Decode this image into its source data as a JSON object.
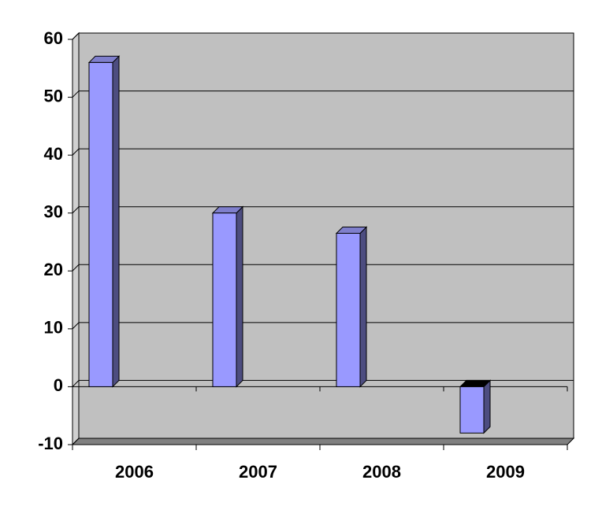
{
  "chart_data": {
    "type": "bar3d",
    "categories": [
      "2006",
      "2007",
      "2008",
      "2009"
    ],
    "values": [
      56,
      30,
      26.5,
      -8
    ],
    "color": "#9999ff",
    "ylim": [
      -10,
      60
    ],
    "yticks": [
      -10,
      0,
      10,
      20,
      30,
      40,
      50,
      60
    ],
    "grid": true
  }
}
